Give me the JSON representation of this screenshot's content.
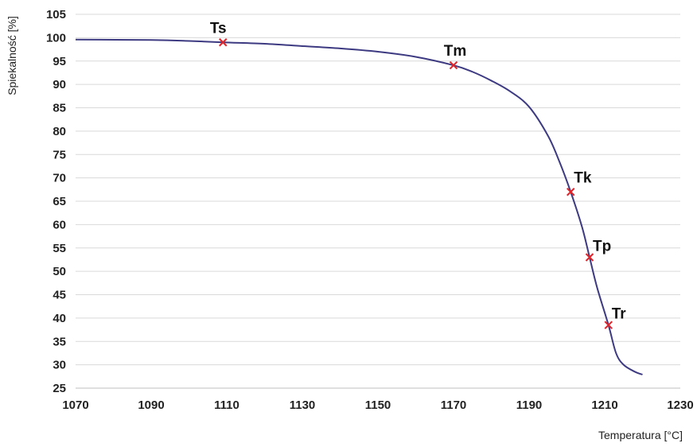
{
  "chart_data": {
    "type": "line",
    "title": "",
    "xlabel": "Temperatura [°C]",
    "ylabel": "Spiekalność [%]",
    "xlim": [
      1070,
      1230
    ],
    "ylim": [
      25,
      105
    ],
    "x_ticks": [
      1070,
      1090,
      1110,
      1130,
      1150,
      1170,
      1190,
      1210,
      1230
    ],
    "y_ticks": [
      25,
      30,
      35,
      40,
      45,
      50,
      55,
      60,
      65,
      70,
      75,
      80,
      85,
      90,
      95,
      100,
      105
    ],
    "grid": "horizontal",
    "legend": "none",
    "series": [
      {
        "x": [
          1070,
          1090,
          1100,
          1109,
          1120,
          1130,
          1140,
          1150,
          1160,
          1170,
          1175,
          1180,
          1185,
          1190,
          1195,
          1198,
          1201,
          1204,
          1206,
          1208,
          1211,
          1213,
          1215,
          1218,
          1220
        ],
        "y": [
          99.6,
          99.5,
          99.3,
          99.0,
          98.7,
          98.2,
          97.7,
          97.0,
          95.9,
          94.1,
          92.7,
          90.8,
          88.5,
          85.2,
          79.0,
          73.5,
          67.0,
          59.5,
          53.0,
          46.5,
          38.5,
          32.5,
          30.0,
          28.5,
          27.9
        ],
        "color": "#3d3a82"
      }
    ],
    "points": [
      {
        "label": "Ts",
        "x": 1109,
        "y": 99.0
      },
      {
        "label": "Tm",
        "x": 1170,
        "y": 94.1
      },
      {
        "label": "Tk",
        "x": 1201,
        "y": 67.0
      },
      {
        "label": "Tp",
        "x": 1206,
        "y": 53.0
      },
      {
        "label": "Tr",
        "x": 1211,
        "y": 38.5
      }
    ],
    "marker_color": "#e0252b"
  }
}
